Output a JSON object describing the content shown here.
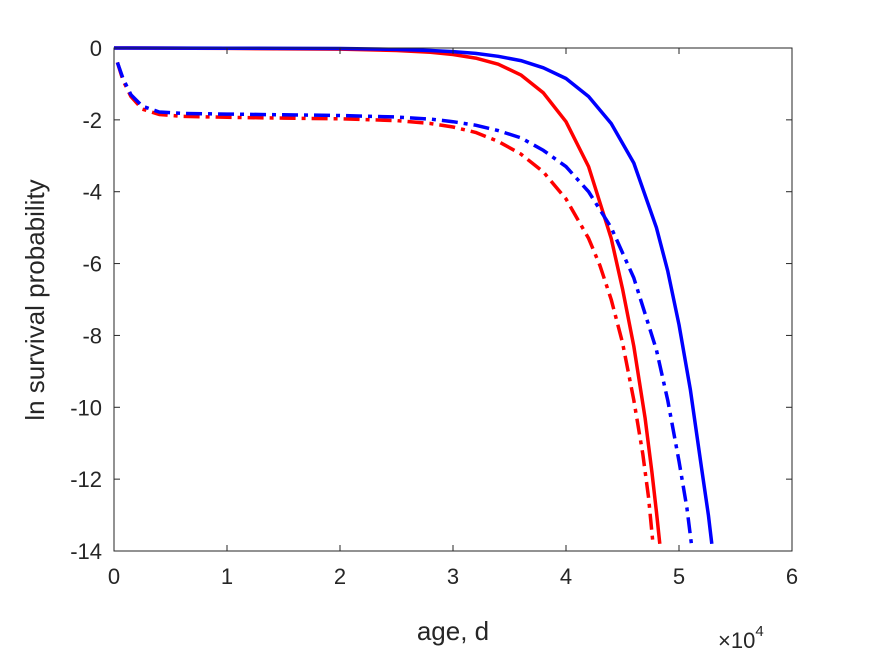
{
  "chart_data": {
    "type": "line",
    "title": "",
    "xlabel": "age, d",
    "ylabel": "ln survival probability",
    "x_multiplier_label": "×10",
    "x_multiplier_exponent": "4",
    "xlim": [
      0,
      60000
    ],
    "ylim": [
      -14,
      0
    ],
    "xticks": [
      0,
      10000,
      20000,
      30000,
      40000,
      50000,
      60000
    ],
    "xtick_labels": [
      "0",
      "1",
      "2",
      "3",
      "4",
      "5",
      "6"
    ],
    "yticks": [
      0,
      -2,
      -4,
      -6,
      -8,
      -10,
      -12,
      -14
    ],
    "ytick_labels": [
      "0",
      "-2",
      "-4",
      "-6",
      "-8",
      "-10",
      "-12",
      "-14"
    ],
    "grid": false,
    "box": true,
    "series": [
      {
        "color": "#ff0000",
        "style": "solid",
        "x": [
          0,
          10000,
          20000,
          25000,
          28000,
          30000,
          32000,
          34000,
          36000,
          38000,
          40000,
          42000,
          44000,
          45000,
          46000,
          47000,
          47600,
          48000,
          48300
        ],
        "y": [
          0,
          -0.01,
          -0.03,
          -0.07,
          -0.12,
          -0.18,
          -0.28,
          -0.45,
          -0.75,
          -1.25,
          -2.05,
          -3.3,
          -5.3,
          -6.7,
          -8.3,
          -10.3,
          -11.8,
          -12.9,
          -13.8
        ]
      },
      {
        "color": "#0000ff",
        "style": "solid",
        "x": [
          0,
          10000,
          20000,
          25000,
          28000,
          30000,
          32000,
          34000,
          36000,
          38000,
          40000,
          42000,
          44000,
          46000,
          48000,
          49000,
          50000,
          51000,
          52000,
          52600,
          52900
        ],
        "y": [
          0,
          -0.005,
          -0.015,
          -0.04,
          -0.07,
          -0.1,
          -0.15,
          -0.23,
          -0.35,
          -0.55,
          -0.85,
          -1.35,
          -2.1,
          -3.2,
          -5.0,
          -6.2,
          -7.7,
          -9.5,
          -11.7,
          -13.0,
          -13.8
        ]
      },
      {
        "color": "#ff0000",
        "style": "dashdot",
        "x": [
          300,
          800,
          1500,
          2500,
          4000,
          6000,
          10000,
          15000,
          20000,
          25000,
          28000,
          30000,
          32000,
          34000,
          36000,
          38000,
          40000,
          42000,
          43000,
          44000,
          45000,
          46000,
          46800,
          47300,
          47700
        ],
        "y": [
          -0.4,
          -0.9,
          -1.35,
          -1.7,
          -1.85,
          -1.9,
          -1.93,
          -1.95,
          -1.97,
          -2.02,
          -2.1,
          -2.2,
          -2.35,
          -2.6,
          -2.95,
          -3.45,
          -4.2,
          -5.3,
          -6.05,
          -7.0,
          -8.2,
          -9.8,
          -11.3,
          -12.5,
          -13.8
        ]
      },
      {
        "color": "#0000ff",
        "style": "dashdot",
        "x": [
          300,
          800,
          1500,
          2500,
          4000,
          6000,
          10000,
          15000,
          20000,
          25000,
          28000,
          30000,
          32000,
          34000,
          36000,
          38000,
          40000,
          42000,
          44000,
          46000,
          48000,
          49000,
          50000,
          50700,
          51100
        ],
        "y": [
          -0.4,
          -0.85,
          -1.3,
          -1.62,
          -1.78,
          -1.82,
          -1.84,
          -1.86,
          -1.88,
          -1.92,
          -1.98,
          -2.05,
          -2.15,
          -2.3,
          -2.5,
          -2.85,
          -3.3,
          -4.0,
          -5.0,
          -6.4,
          -8.4,
          -9.8,
          -11.5,
          -12.8,
          -13.8
        ]
      }
    ]
  }
}
